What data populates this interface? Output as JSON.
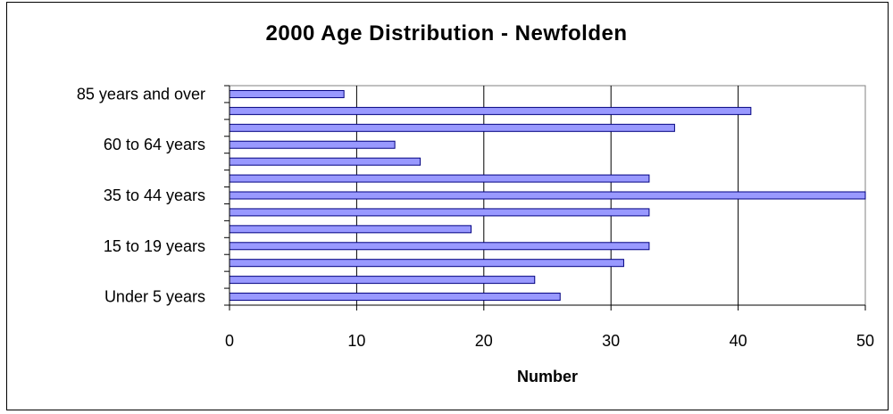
{
  "chart_data": {
    "type": "bar",
    "orientation": "horizontal",
    "title": "2000 Age Distribution - Newfolden",
    "xlabel": "Number",
    "ylabel": "",
    "xlim": [
      0,
      50
    ],
    "x_ticks": [
      "0",
      "10",
      "20",
      "30",
      "40",
      "50"
    ],
    "categories": [
      "Under 5 years",
      "",
      "",
      "15 to 19 years",
      "",
      "",
      "35 to 44 years",
      "",
      "",
      "60 to 64 years",
      "",
      "",
      "85 years and over"
    ],
    "values": [
      26,
      24,
      31,
      33,
      19,
      33,
      50,
      33,
      15,
      13,
      35,
      41,
      9
    ],
    "grid": true,
    "colors": {
      "bar_fill": "#9999ff",
      "bar_stroke": "#000080",
      "plot_border": "#808080",
      "gridline": "#000000"
    }
  }
}
